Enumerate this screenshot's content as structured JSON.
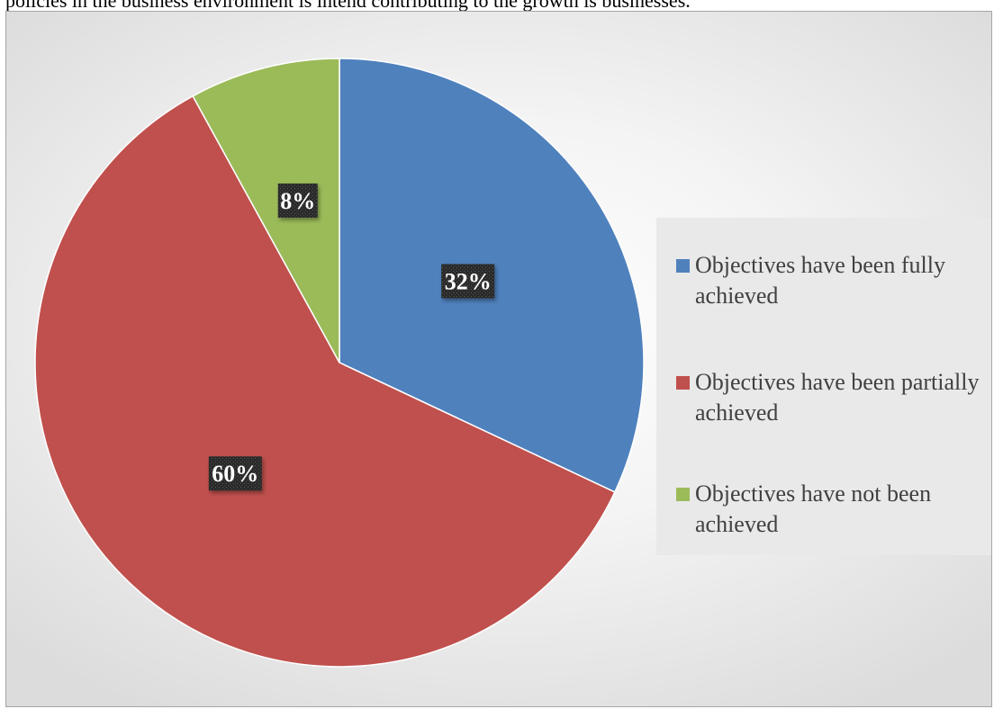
{
  "caption": "policies in the business environment is intend contributing to the growth is businesses.",
  "chart_data": {
    "type": "pie",
    "title": "",
    "legend_position": "right",
    "slices": [
      {
        "name": "Objectives have been fully achieved",
        "value": 32,
        "label": "32%",
        "color": "#4f81bd"
      },
      {
        "name": "Objectives have been partially achieved",
        "value": 60,
        "label": "60%",
        "color": "#c0504d"
      },
      {
        "name": "Objectives have not been achieved",
        "value": 8,
        "label": "8%",
        "color": "#9bbb59"
      }
    ]
  }
}
